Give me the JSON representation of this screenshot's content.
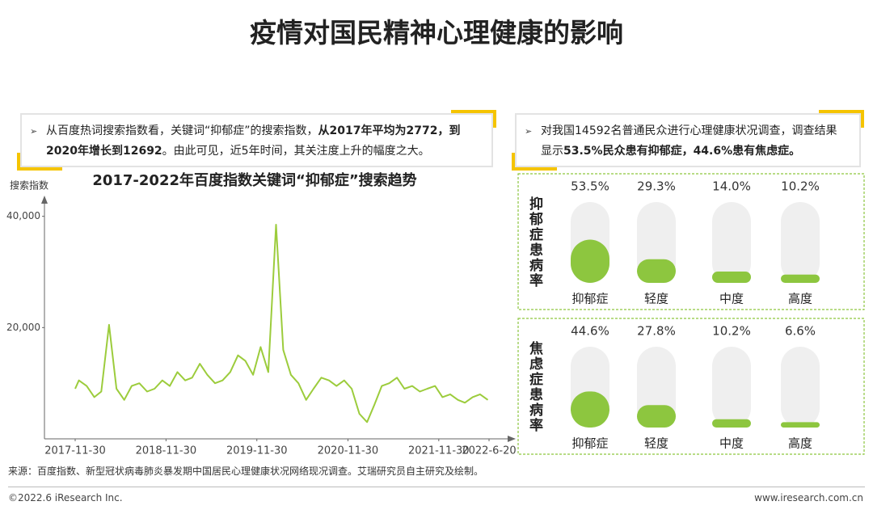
{
  "title": "疫情对国民精神心理健康的影响",
  "notes": [
    [
      {
        "text": "从百度热词搜索指数看，关键词“抑郁症”的搜索指数，"
      },
      {
        "text": "从2017年平均为2772，到2020年增长到12692",
        "bold": true
      },
      {
        "text": "。由此可见，近5年时间，其关注度上升的幅度之大。"
      }
    ],
    [
      {
        "text": "对我国14592名普通民众进行心理健康状况调查，调查结果显示"
      },
      {
        "text": "53.5%民众患有抑郁症，44.6%患有焦虑症。",
        "bold": true
      }
    ]
  ],
  "chart_data": [
    {
      "type": "line",
      "title": "2017-2022年百度指数关键词“抑郁症”搜索趋势",
      "y_label": "搜索指数",
      "color": "#9ccc3c",
      "x": [
        "2017-11-30",
        "2017-12-15",
        "2018-01-15",
        "2018-02-15",
        "2018-03-15",
        "2018-04-15",
        "2018-05-15",
        "2018-06-15",
        "2018-07-15",
        "2018-08-15",
        "2018-09-15",
        "2018-10-15",
        "2018-11-15",
        "2018-12-15",
        "2019-01-15",
        "2019-02-15",
        "2019-03-15",
        "2019-04-15",
        "2019-05-15",
        "2019-06-15",
        "2019-07-15",
        "2019-08-15",
        "2019-09-15",
        "2019-10-15",
        "2019-11-15",
        "2019-12-15",
        "2020-01-15",
        "2020-02-15",
        "2020-03-15",
        "2020-04-15",
        "2020-05-15",
        "2020-06-15",
        "2020-07-15",
        "2020-08-15",
        "2020-09-15",
        "2020-10-15",
        "2020-11-15",
        "2020-12-15",
        "2021-01-15",
        "2021-02-15",
        "2021-03-15",
        "2021-04-15",
        "2021-05-15",
        "2021-06-15",
        "2021-07-15",
        "2021-08-15",
        "2021-09-15",
        "2021-10-15",
        "2021-11-15",
        "2021-12-15",
        "2022-01-15",
        "2022-02-15",
        "2022-03-15",
        "2022-04-15",
        "2022-05-15",
        "2022-06-15"
      ],
      "values": [
        9000,
        10500,
        9500,
        7500,
        8500,
        20500,
        9000,
        7000,
        9500,
        10000,
        8500,
        9000,
        10500,
        9500,
        12000,
        10500,
        11000,
        13500,
        11500,
        10000,
        10500,
        12000,
        15000,
        14000,
        11500,
        16500,
        12000,
        38500,
        16000,
        11500,
        10000,
        7000,
        9000,
        11000,
        10500,
        9500,
        10500,
        9000,
        4500,
        3000,
        6000,
        9500,
        10000,
        11000,
        9000,
        9500,
        8500,
        9000,
        9500,
        7500,
        8000,
        7000,
        6500,
        7500,
        8000,
        7000
      ],
      "xlim": [
        "2017-11-30",
        "2022-06-20"
      ],
      "xticks": [
        "2017-11-30",
        "2018-11-30",
        "2019-11-30",
        "2020-11-30",
        "2021-11-30",
        {
          "value": "2022-06-20",
          "label": "2022-6-20"
        }
      ],
      "ylim": [
        0,
        43000
      ],
      "yticks": [
        {
          "value": 20000,
          "label": "20,000"
        },
        {
          "value": 40000,
          "label": "40,000"
        }
      ]
    },
    {
      "type": "bar",
      "y_label": "抑郁症患病率",
      "color": "#8dc63f",
      "ylim": [
        0,
        100
      ],
      "categories": [
        "抑郁症",
        "轻度",
        "中度",
        "高度"
      ],
      "values": [
        53.5,
        29.3,
        14.0,
        10.2
      ],
      "value_labels": [
        "53.5%",
        "29.3%",
        "14.0%",
        "10.2%"
      ]
    },
    {
      "type": "bar",
      "y_label": "焦虑症患病率",
      "color": "#8dc63f",
      "ylim": [
        0,
        100
      ],
      "categories": [
        "抑郁症",
        "轻度",
        "中度",
        "高度"
      ],
      "values": [
        44.6,
        27.8,
        10.2,
        6.6
      ],
      "value_labels": [
        "44.6%",
        "27.8%",
        "10.2%",
        "6.6%"
      ]
    }
  ],
  "source": "来源：百度指数、新型冠状病毒肺炎暴发期中国居民心理健康状况网络现况调查。艾瑞研究员自主研究及绘制。",
  "copyright": "©2022.6 iResearch Inc.",
  "website": "www.iresearch.com.cn"
}
